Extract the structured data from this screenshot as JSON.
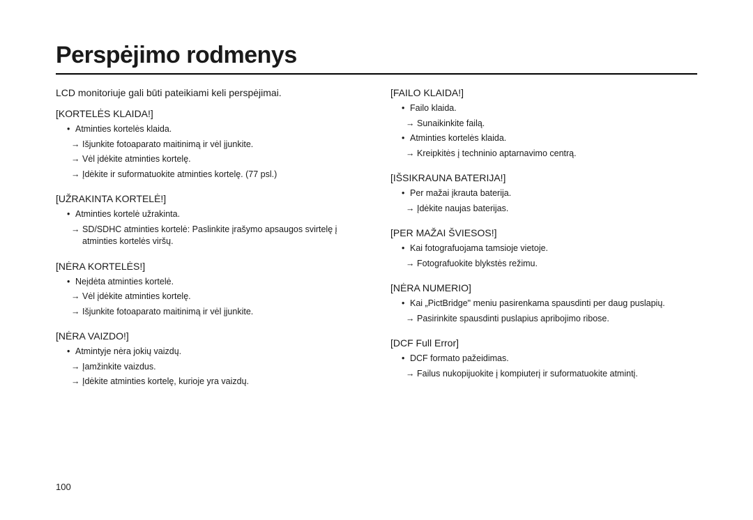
{
  "title": "Perspėjimo rodmenys",
  "intro": "LCD monitoriuje gali būti pateikiami keli perspėjimai.",
  "page_number": "100",
  "left": [
    {
      "heading": "[KORTELĖS KLAIDA!]",
      "items": [
        {
          "bullet": "Atminties kortelės klaida.",
          "arrows": [
            "Išjunkite fotoaparato maitinimą ir vėl įjunkite.",
            "Vėl įdėkite atminties kortelę.",
            "Įdėkite ir suformatuokite atminties kortelę. (77 psl.)"
          ]
        }
      ]
    },
    {
      "heading": "[UŽRAKINTA KORTELĖ!]",
      "items": [
        {
          "bullet": "Atminties kortelė užrakinta.",
          "arrows": [
            "SD/SDHC atminties kortelė: Paslinkite įrašymo apsaugos svirtelę į atminties kortelės viršų."
          ]
        }
      ]
    },
    {
      "heading": "[NĖRA KORTELĖS!]",
      "items": [
        {
          "bullet": "Neįdėta atminties kortelė.",
          "arrows": [
            "Vėl įdėkite atminties kortelę.",
            "Išjunkite fotoaparato maitinimą ir vėl įjunkite."
          ]
        }
      ]
    },
    {
      "heading": "[NĖRA VAIZDO!]",
      "items": [
        {
          "bullet": "Atmintyje nėra jokių vaizdų.",
          "arrows": [
            "Įamžinkite vaizdus.",
            "Įdėkite atminties kortelę, kurioje yra vaizdų."
          ]
        }
      ]
    }
  ],
  "right": [
    {
      "heading": "[FAILO KLAIDA!]",
      "items": [
        {
          "bullet": "Failo klaida.",
          "arrows": [
            "Sunaikinkite failą."
          ]
        },
        {
          "bullet": "Atminties kortelės klaida.",
          "arrows": [
            "Kreipkitės į techninio aptarnavimo centrą."
          ]
        }
      ]
    },
    {
      "heading": "[IŠSIKRAUNA BATERIJA!]",
      "items": [
        {
          "bullet": "Per mažai įkrauta baterija.",
          "arrows": [
            "Įdėkite naujas baterijas."
          ]
        }
      ]
    },
    {
      "heading": "[PER MAŽAI ŠVIESOS!]",
      "items": [
        {
          "bullet": "Kai fotografuojama tamsioje vietoje.",
          "arrows": [
            "Fotografuokite blykstės režimu."
          ]
        }
      ]
    },
    {
      "heading": "[NĖRA NUMERIO]",
      "items": [
        {
          "bullet": "Kai „PictBridge\" meniu pasirenkama spausdinti per daug puslapių.",
          "arrows": [
            "Pasirinkite spausdinti puslapius apribojimo ribose."
          ]
        }
      ]
    },
    {
      "heading": "[DCF Full Error]",
      "items": [
        {
          "bullet": "DCF formato pažeidimas.",
          "arrows": [
            "Failus nukopijuokite į kompiuterį ir suformatuokite atmintį."
          ]
        }
      ]
    }
  ]
}
